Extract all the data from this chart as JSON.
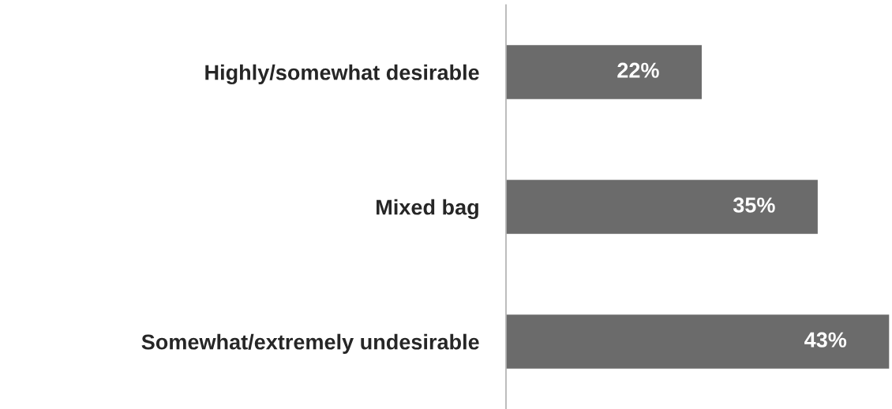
{
  "chart_data": {
    "type": "bar",
    "orientation": "horizontal",
    "categories": [
      "Highly/somewhat desirable",
      "Mixed bag",
      "Somewhat/extremely undesirable"
    ],
    "values": [
      22,
      35,
      43
    ],
    "color": "#6b6b6b",
    "data_labels": true,
    "value_labels": [
      "22%",
      "35%",
      "43%"
    ],
    "grid": false,
    "legend": false
  }
}
